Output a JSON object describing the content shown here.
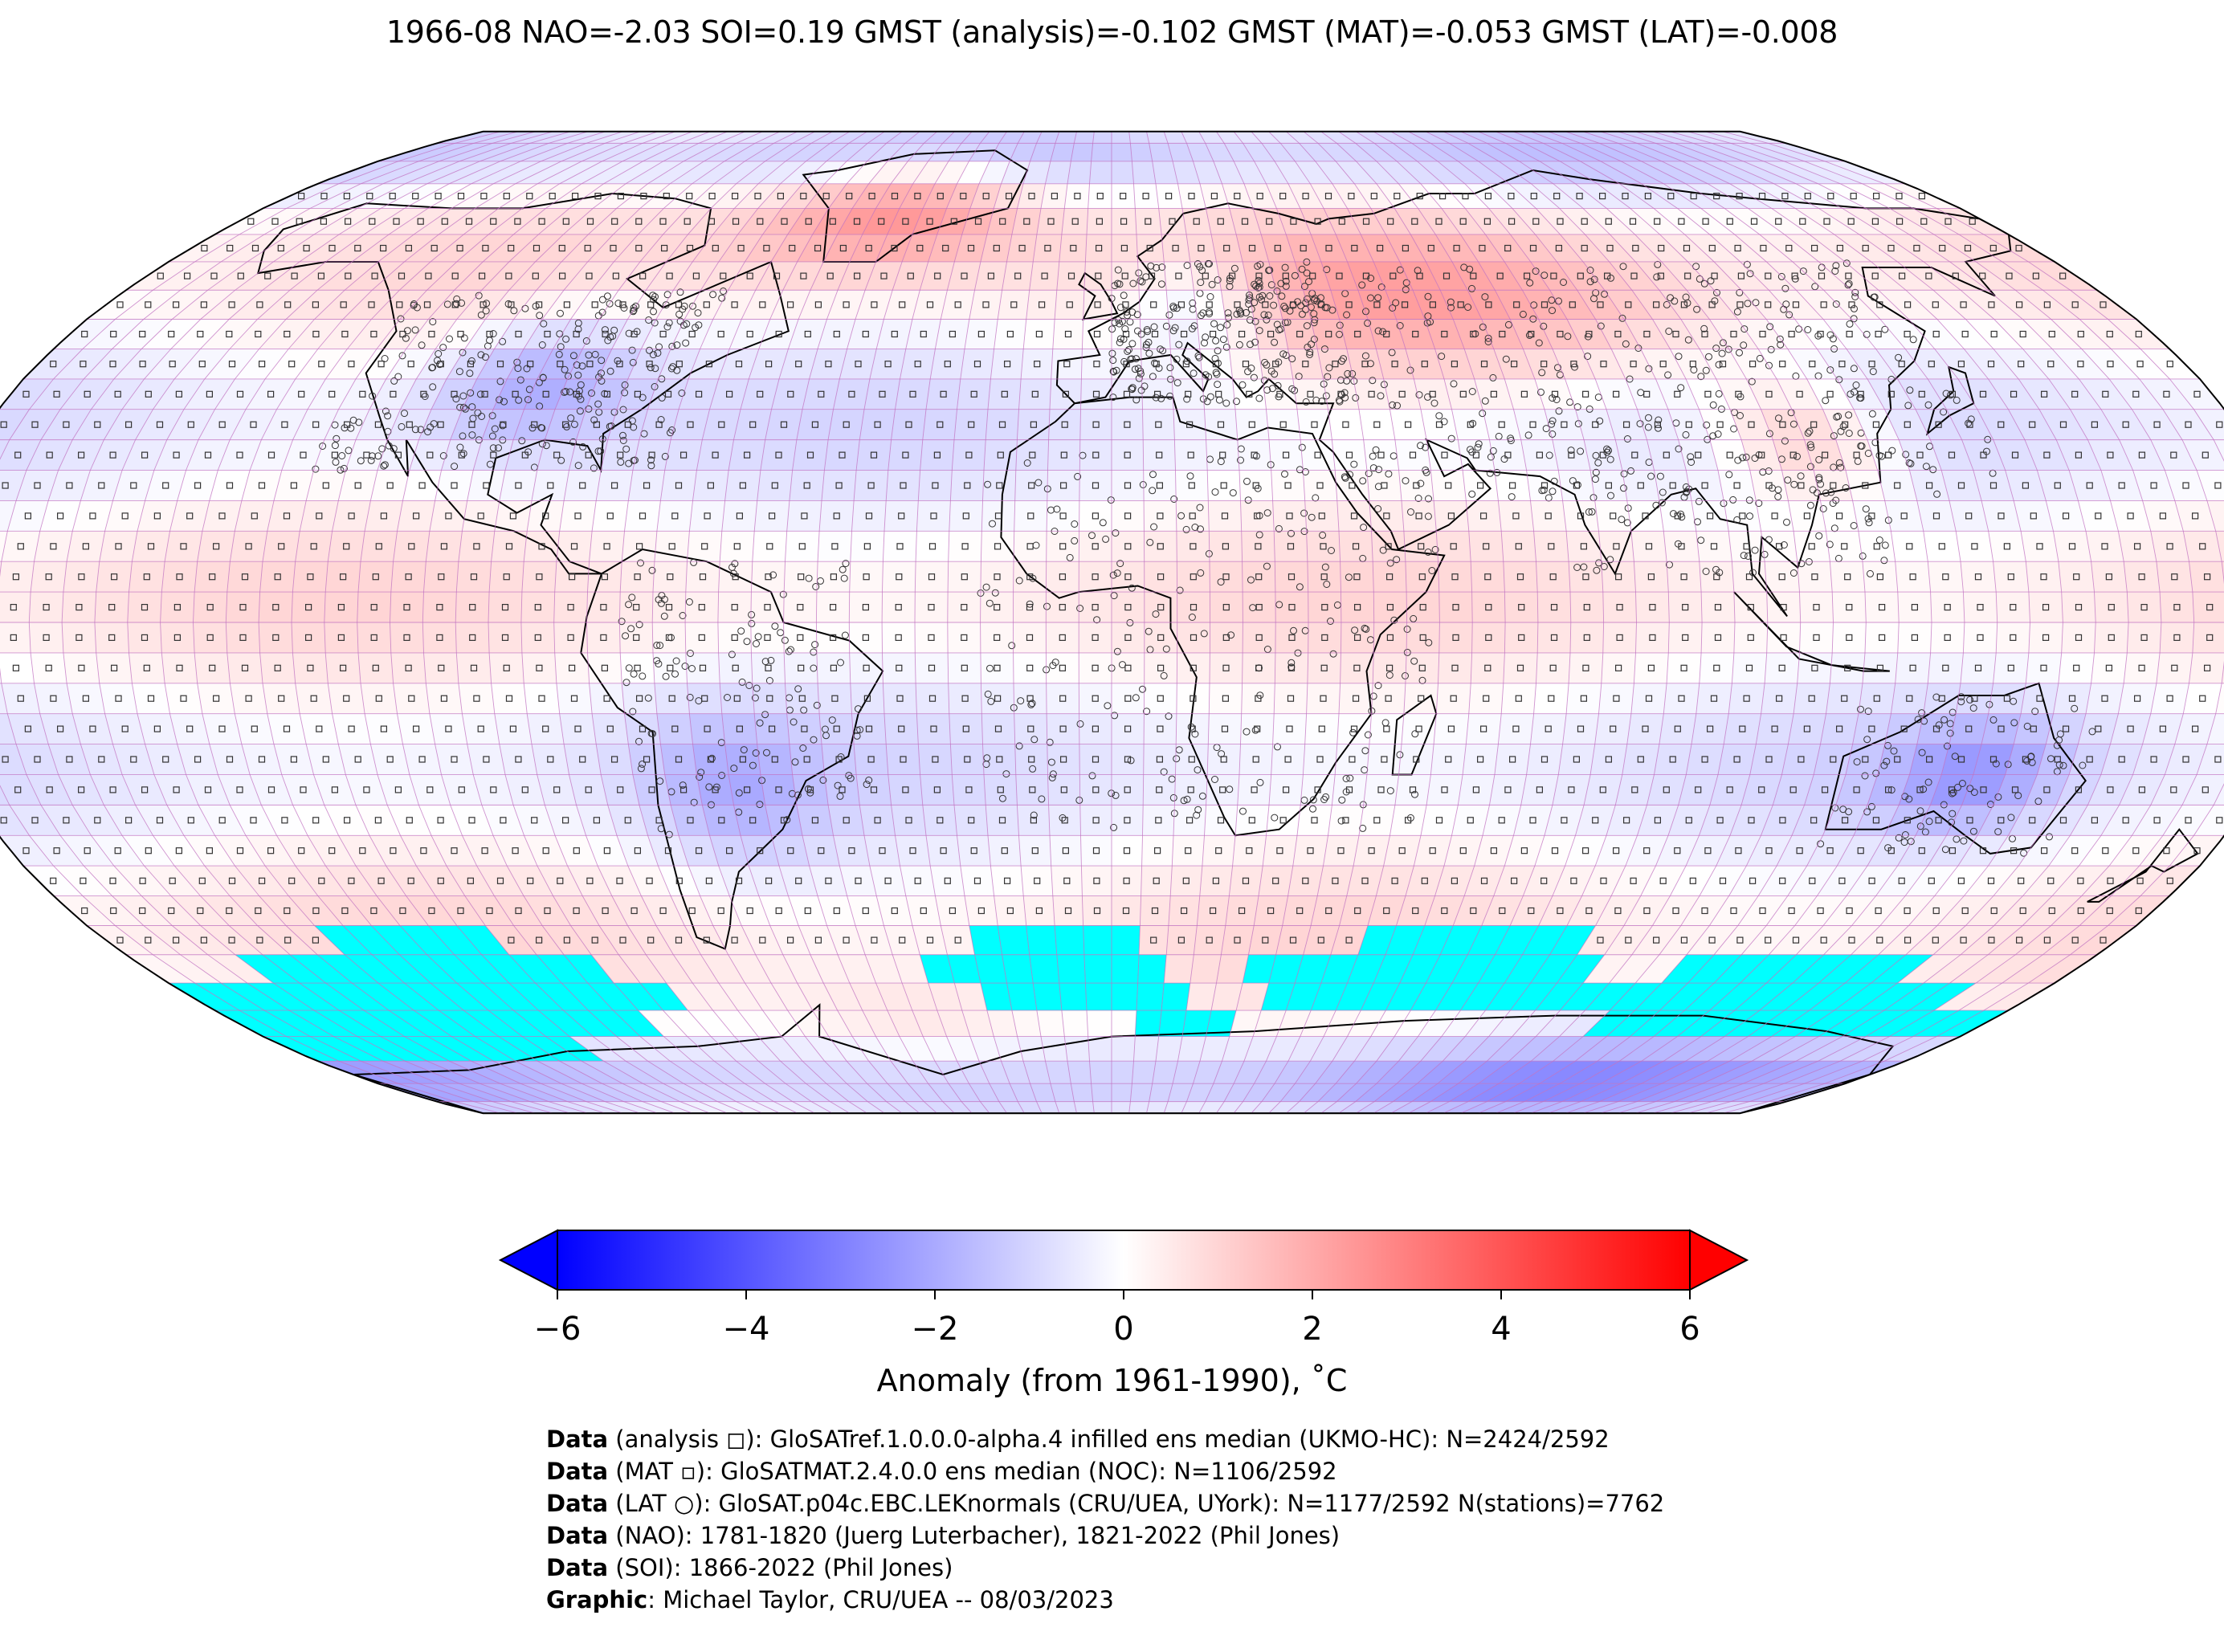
{
  "title": "1966-08 NAO=-2.03 SOI=0.19 GMST (analysis)=-0.102 GMST (MAT)=-0.053 GMST (LAT)=-0.008",
  "map": {
    "projection": "Robinson",
    "grid": "5x5 degree lat-lon boxes",
    "colormap": "bwr",
    "colors": {
      "cold": "#0000ff",
      "neutral": "#ffffff",
      "warm": "#ff0000",
      "missing": "#00ffff",
      "grid_lines": "#c070c0",
      "coastlines": "#000000"
    },
    "value_range": [
      -6,
      6
    ]
  },
  "colorbar": {
    "ticks": [
      "−6",
      "−4",
      "−2",
      "0",
      "2",
      "4",
      "6"
    ],
    "label": "Anomaly (from 1961-1990), ˚C",
    "extend": "both"
  },
  "credits": [
    {
      "bold": "Data",
      "text": " (analysis ◻): GloSATref.1.0.0.0-alpha.4 infilled ens median (UKMO-HC): N=2424/2592"
    },
    {
      "bold": "Data",
      "text": " (MAT ▫): GloSATMAT.2.4.0.0 ens median (NOC): N=1106/2592"
    },
    {
      "bold": "Data",
      "text": " (LAT ○): GloSAT.p04c.EBC.LEKnormals (CRU/UEA, UYork): N=1177/2592 N(stations)=7762"
    },
    {
      "bold": "Data",
      "text": " (NAO): 1781-1820 (Juerg Luterbacher), 1821-2022 (Phil Jones)"
    },
    {
      "bold": "Data",
      "text": " (SOI): 1866-2022 (Phil Jones)"
    },
    {
      "bold": "Graphic",
      "text": ": Michael Taylor, CRU/UEA -- 08/03/2023"
    }
  ]
}
